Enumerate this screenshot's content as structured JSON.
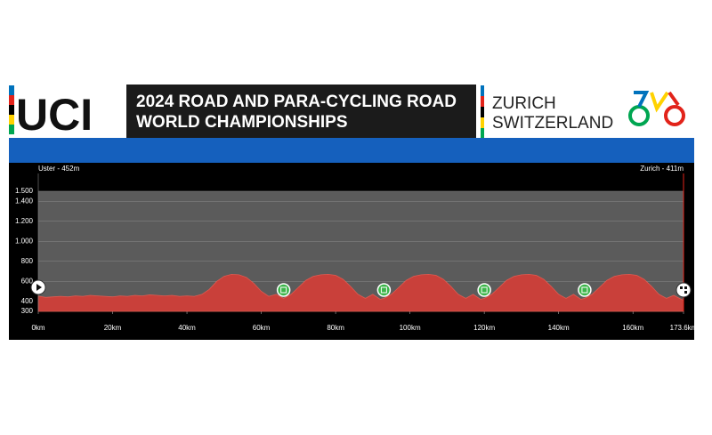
{
  "header": {
    "logo": "UCI",
    "title_line1": "2024 ROAD AND PARA-CYCLING ROAD",
    "title_line2": "WORLD CHAMPIONSHIPS",
    "city": "ZURICH",
    "country": "SWITZERLAND"
  },
  "chart_data": {
    "type": "area",
    "start_label": "Uster - 452m",
    "finish_label": "Zurich - 411m",
    "color": "#c9403a",
    "x": [
      0,
      2,
      4,
      6,
      8,
      10,
      12,
      14,
      16,
      18,
      20,
      22,
      24,
      26,
      28,
      30,
      32,
      34,
      36,
      38,
      40,
      42,
      44,
      46,
      48,
      50,
      52,
      54,
      56,
      58,
      60,
      62,
      64,
      66,
      68,
      70,
      72,
      74,
      76,
      78,
      80,
      82,
      84,
      86,
      88,
      90,
      92,
      93,
      95,
      97,
      99,
      101,
      103,
      105,
      107,
      109,
      111,
      113,
      115,
      117,
      119,
      120,
      122,
      124,
      126,
      128,
      130,
      132,
      134,
      136,
      138,
      140,
      142,
      144,
      146,
      147,
      149,
      151,
      153,
      155,
      157,
      159,
      161,
      163,
      165,
      167,
      169,
      171,
      173,
      173.6
    ],
    "values": [
      452,
      440,
      445,
      450,
      445,
      455,
      450,
      460,
      455,
      450,
      445,
      455,
      450,
      460,
      455,
      465,
      460,
      455,
      460,
      450,
      455,
      450,
      470,
      520,
      600,
      650,
      670,
      665,
      640,
      580,
      500,
      450,
      470,
      430,
      470,
      540,
      610,
      650,
      665,
      670,
      660,
      620,
      550,
      470,
      430,
      470,
      420,
      430,
      470,
      540,
      610,
      650,
      665,
      670,
      660,
      620,
      550,
      470,
      430,
      470,
      420,
      430,
      470,
      540,
      610,
      650,
      665,
      670,
      660,
      620,
      550,
      470,
      430,
      470,
      420,
      430,
      470,
      540,
      610,
      650,
      665,
      670,
      660,
      620,
      550,
      470,
      430,
      460,
      420,
      411
    ],
    "checkpoints_km": [
      66,
      93,
      120,
      147
    ],
    "xlim": [
      0,
      173.6
    ],
    "ylim": [
      300,
      1500
    ],
    "xticks": [
      {
        "value": 0,
        "label": "0km"
      },
      {
        "value": 20,
        "label": "20km"
      },
      {
        "value": 40,
        "label": "40km"
      },
      {
        "value": 60,
        "label": "60km"
      },
      {
        "value": 80,
        "label": "80km"
      },
      {
        "value": 100,
        "label": "100km"
      },
      {
        "value": 120,
        "label": "120km"
      },
      {
        "value": 140,
        "label": "140km"
      },
      {
        "value": 160,
        "label": "160km"
      },
      {
        "value": 173.6,
        "label": "173.6km"
      }
    ],
    "yticks": [
      300,
      400,
      600,
      800,
      {
        "value": 1000,
        "label": "1.000"
      },
      {
        "value": 1200,
        "label": "1.200"
      },
      {
        "value": 1400,
        "label": "1.400"
      },
      {
        "value": 1500,
        "label": "1.500"
      }
    ],
    "grid": true
  }
}
